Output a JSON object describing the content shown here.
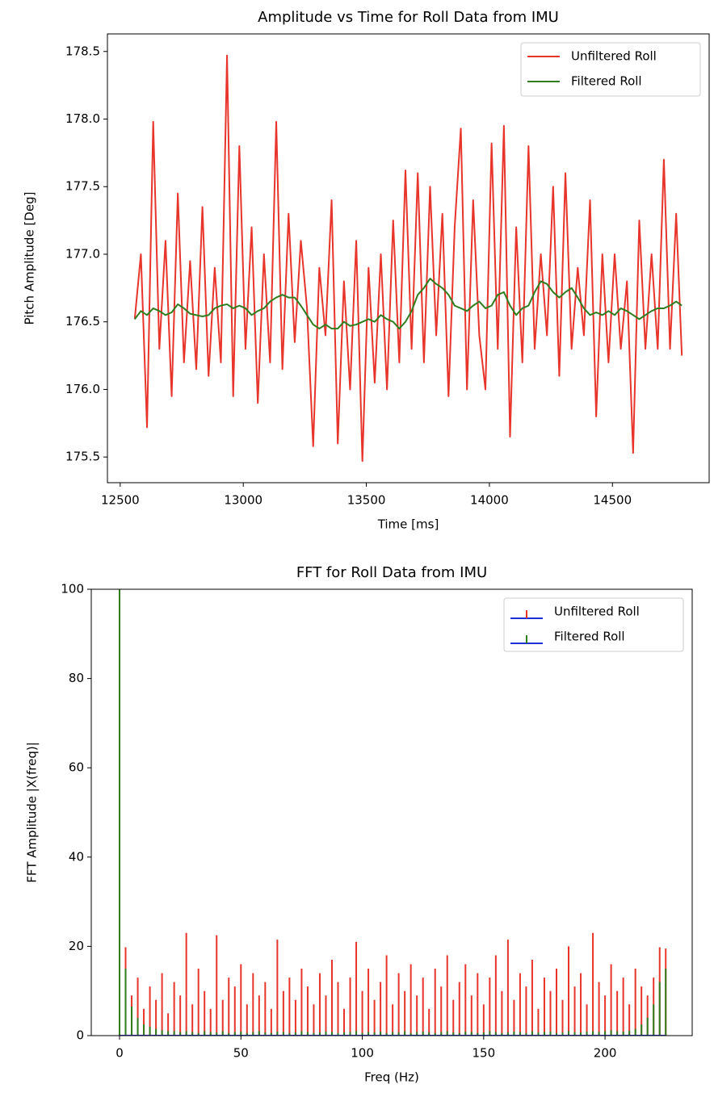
{
  "chart_data": [
    {
      "type": "line",
      "title": "Amplitude vs Time for Roll Data from IMU",
      "xlabel": "Time [ms]",
      "ylabel": "Pitch Amplitude [Deg]",
      "x": [
        12559,
        12584,
        12609,
        12634,
        12659,
        12684,
        12709,
        12734,
        12759,
        12784,
        12809,
        12834,
        12859,
        12884,
        12909,
        12934,
        12959,
        12984,
        13009,
        13034,
        13059,
        13084,
        13109,
        13134,
        13159,
        13184,
        13209,
        13234,
        13259,
        13284,
        13309,
        13334,
        13359,
        13384,
        13409,
        13434,
        13459,
        13484,
        13509,
        13534,
        13559,
        13584,
        13609,
        13634,
        13659,
        13684,
        13709,
        13734,
        13759,
        13784,
        13809,
        13834,
        13859,
        13884,
        13909,
        13934,
        13959,
        13984,
        14009,
        14034,
        14059,
        14084,
        14109,
        14134,
        14159,
        14184,
        14209,
        14234,
        14259,
        14284,
        14309,
        14334,
        14359,
        14384,
        14409,
        14434,
        14459,
        14484,
        14509,
        14534,
        14559,
        14584,
        14609,
        14634,
        14659,
        14684,
        14709,
        14734,
        14759,
        14782
      ],
      "series": [
        {
          "name": "Unfiltered Roll",
          "color": "#e8352b",
          "values": [
            176.52,
            177.0,
            175.72,
            177.98,
            176.3,
            177.1,
            175.95,
            177.45,
            176.2,
            176.95,
            176.15,
            177.35,
            176.1,
            176.9,
            176.2,
            178.47,
            175.95,
            177.8,
            176.3,
            177.2,
            175.9,
            177.0,
            176.2,
            177.98,
            176.15,
            177.3,
            176.35,
            177.1,
            176.6,
            175.58,
            176.9,
            176.4,
            177.4,
            175.6,
            176.8,
            176.0,
            177.1,
            175.47,
            176.9,
            176.05,
            177.0,
            176.0,
            177.25,
            176.2,
            177.62,
            176.3,
            177.6,
            176.2,
            177.5,
            176.4,
            177.3,
            175.95,
            177.2,
            177.93,
            176.0,
            177.4,
            176.4,
            176.0,
            177.82,
            176.3,
            177.95,
            175.65,
            177.2,
            176.2,
            177.8,
            176.3,
            177.0,
            176.4,
            177.5,
            176.1,
            177.6,
            176.3,
            176.9,
            176.4,
            177.4,
            175.8,
            177.0,
            176.2,
            177.0,
            176.3,
            176.8,
            175.53,
            177.25,
            176.3,
            177.0,
            176.3,
            177.7,
            176.3,
            177.3,
            176.25
          ]
        },
        {
          "name": "Filtered Roll",
          "color": "#2f7d1f",
          "values": [
            176.52,
            176.58,
            176.55,
            176.6,
            176.58,
            176.55,
            176.57,
            176.63,
            176.6,
            176.56,
            176.55,
            176.54,
            176.55,
            176.6,
            176.62,
            176.63,
            176.6,
            176.62,
            176.6,
            176.55,
            176.58,
            176.6,
            176.65,
            176.68,
            176.7,
            176.68,
            176.68,
            176.62,
            176.55,
            176.48,
            176.45,
            176.48,
            176.45,
            176.45,
            176.5,
            176.47,
            176.48,
            176.5,
            176.52,
            176.5,
            176.55,
            176.52,
            176.5,
            176.45,
            176.5,
            176.58,
            176.7,
            176.75,
            176.82,
            176.78,
            176.75,
            176.7,
            176.62,
            176.6,
            176.58,
            176.62,
            176.65,
            176.6,
            176.62,
            176.7,
            176.72,
            176.62,
            176.55,
            176.6,
            176.62,
            176.72,
            176.8,
            176.78,
            176.72,
            176.68,
            176.72,
            176.75,
            176.68,
            176.6,
            176.55,
            176.57,
            176.55,
            176.58,
            176.55,
            176.6,
            176.58,
            176.55,
            176.52,
            176.55,
            176.58,
            176.6,
            176.6,
            176.62,
            176.65,
            176.62
          ]
        }
      ],
      "xlim": [
        12448,
        14893
      ],
      "xticks": [
        12500,
        13000,
        13500,
        14000,
        14500
      ],
      "ylim": [
        175.31,
        178.63
      ],
      "yticks": [
        175.5,
        {
          "value": 176,
          "label": "176.0"
        },
        176.5,
        {
          "value": 177,
          "label": "177.0"
        },
        177.5,
        {
          "value": 178,
          "label": "178.0"
        },
        178.5
      ],
      "legend": "upper right"
    },
    {
      "type": "stem",
      "title": "FFT for Roll Data from IMU",
      "xlabel": "Freq (Hz)",
      "ylabel": "FFT Amplitude |X(freq)|",
      "x": [
        0,
        2.5,
        5,
        7.5,
        10,
        12.5,
        15,
        17.5,
        20,
        22.5,
        25,
        27.5,
        30,
        32.5,
        35,
        37.5,
        40,
        42.5,
        45,
        47.5,
        50,
        52.5,
        55,
        57.5,
        60,
        62.5,
        65,
        67.5,
        70,
        72.5,
        75,
        77.5,
        80,
        82.5,
        85,
        87.5,
        90,
        92.5,
        95,
        97.5,
        100,
        102.5,
        105,
        107.5,
        110,
        112.5,
        115,
        117.5,
        120,
        122.5,
        125,
        127.5,
        130,
        132.5,
        135,
        137.5,
        140,
        142.5,
        145,
        147.5,
        150,
        152.5,
        155,
        157.5,
        160,
        162.5,
        165,
        167.5,
        170,
        172.5,
        175,
        177.5,
        180,
        182.5,
        185,
        187.5,
        190,
        192.5,
        195,
        197.5,
        200,
        202.5,
        205,
        207.5,
        210,
        212.5,
        215,
        217.5,
        220,
        222.5,
        225
      ],
      "series": [
        {
          "name": "Unfiltered Roll",
          "color": "#e8352b",
          "values": [
            100,
            19.8,
            9,
            13,
            6,
            11,
            8,
            14,
            5,
            12,
            9,
            23,
            7,
            15,
            10,
            6,
            22.5,
            8,
            13,
            11,
            16,
            7,
            14,
            9,
            12,
            6,
            21.5,
            10,
            13,
            8,
            15,
            11,
            7,
            14,
            9,
            17,
            12,
            6,
            13,
            21,
            10,
            15,
            8,
            12,
            18,
            7,
            14,
            10,
            16,
            9,
            13,
            6,
            15,
            11,
            18,
            8,
            12,
            16,
            9,
            14,
            7,
            13,
            18,
            10,
            21.5,
            8,
            14,
            11,
            17,
            6,
            13,
            10,
            15,
            8,
            20,
            11,
            14,
            7,
            23,
            12,
            9,
            16,
            10,
            13,
            7,
            15,
            11,
            9,
            13,
            19.8,
            19.5
          ]
        },
        {
          "name": "Filtered Roll",
          "color": "#2f7d1f",
          "values": [
            100,
            15,
            6.5,
            4,
            2.5,
            2,
            1.5,
            1.2,
            1,
            1,
            0.8,
            1,
            0.8,
            0.6,
            1,
            0.8,
            0.7,
            1,
            0.6,
            0.8,
            0.9,
            0.6,
            0.8,
            1,
            0.7,
            0.6,
            0.9,
            0.8,
            0.6,
            0.7,
            1,
            0.8,
            0.6,
            0.7,
            0.9,
            0.8,
            0.6,
            0.7,
            0.8,
            1,
            0.6,
            0.8,
            0.7,
            0.9,
            0.6,
            0.8,
            0.7,
            1,
            0.6,
            0.8,
            0.9,
            0.7,
            0.6,
            0.8,
            1,
            0.7,
            0.6,
            0.9,
            0.8,
            0.6,
            0.7,
            1,
            0.8,
            0.6,
            0.7,
            0.9,
            0.8,
            0.6,
            1,
            0.7,
            0.8,
            0.9,
            0.6,
            0.7,
            1,
            0.8,
            0.7,
            0.9,
            1,
            0.8,
            1,
            1.2,
            1,
            0.9,
            1.1,
            1.5,
            2.5,
            4,
            7,
            12,
            15
          ]
        }
      ],
      "baseline_color": "#1f2fd6",
      "xlim": [
        -11.65,
        235.9
      ],
      "xticks": [
        0,
        50,
        100,
        150,
        200
      ],
      "ylim": [
        0,
        100
      ],
      "yticks": [
        0,
        20,
        40,
        60,
        80,
        100
      ],
      "legend": "upper right"
    }
  ]
}
